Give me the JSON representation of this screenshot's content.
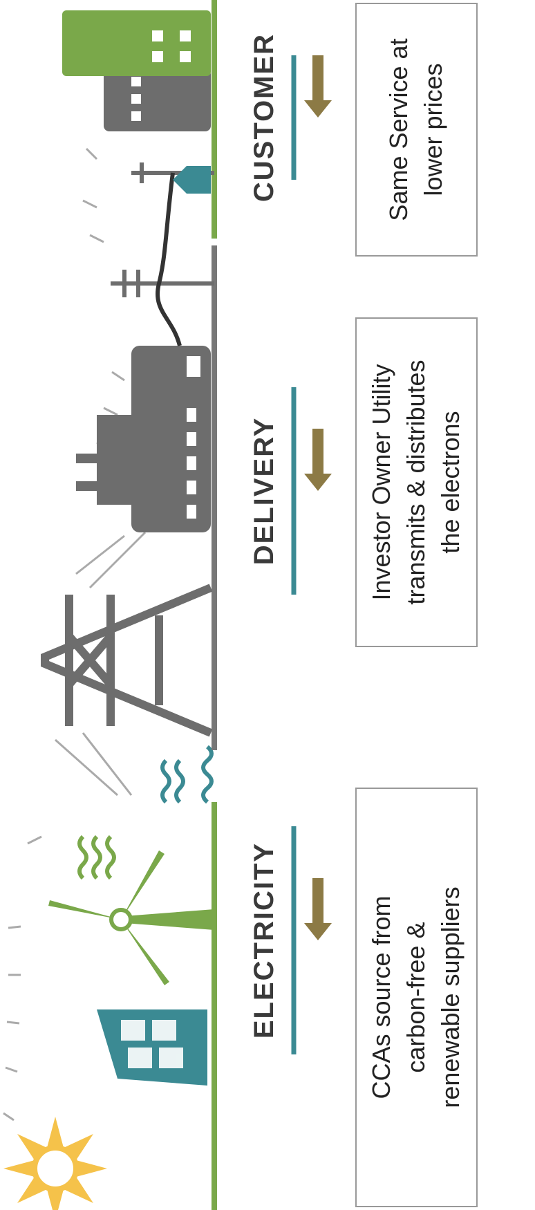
{
  "stages": [
    {
      "label": "ELECTRICITY",
      "description": [
        "CCAs source from",
        "carbon-free &",
        "renewable suppliers"
      ]
    },
    {
      "label": "DELIVERY",
      "description": [
        "Investor Owner Utility",
        "transmits & distributes",
        "the electrons"
      ]
    },
    {
      "label": "CUSTOMER",
      "description": [
        "Same Service at",
        "lower prices"
      ]
    }
  ]
}
